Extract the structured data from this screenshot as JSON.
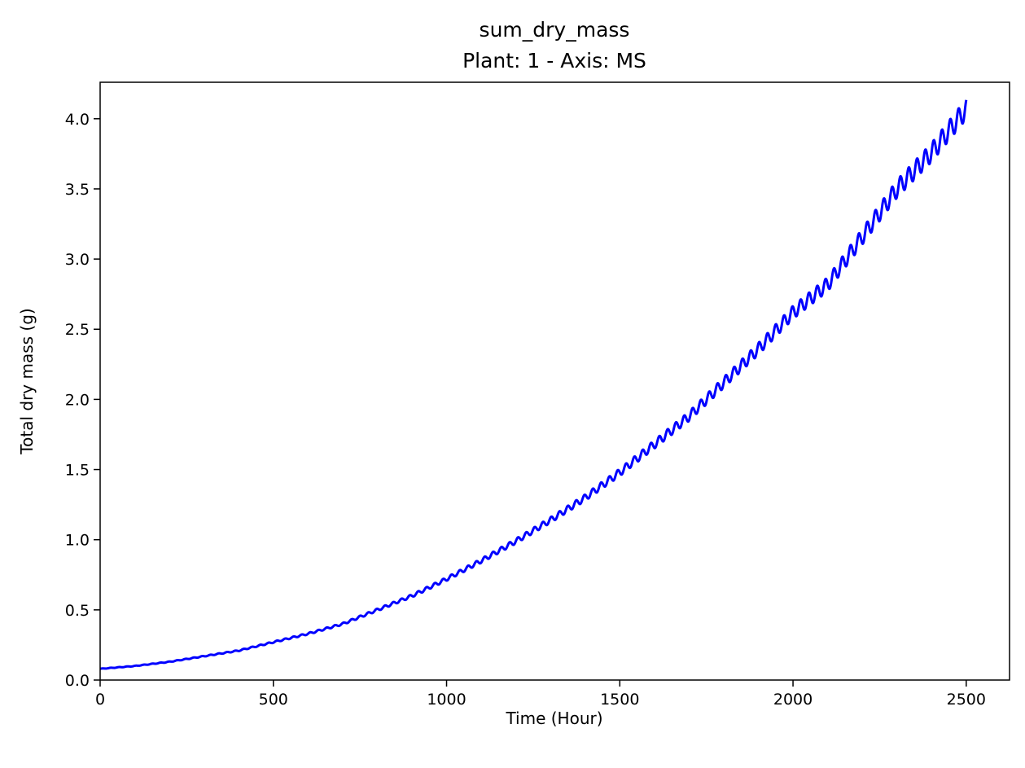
{
  "chart_data": {
    "type": "line",
    "title": "sum_dry_mass",
    "subtitle": "Plant: 1 - Axis: MS",
    "xlabel": "Time (Hour)",
    "ylabel": "Total dry mass (g)",
    "xlim": [
      0,
      2625
    ],
    "ylim": [
      0,
      4.26
    ],
    "xticks": [
      0,
      500,
      1000,
      1500,
      2000,
      2500
    ],
    "xtick_labels": [
      "0",
      "500",
      "1000",
      "1500",
      "2000",
      "2500"
    ],
    "yticks": [
      0,
      0.5,
      1.0,
      1.5,
      2.0,
      2.5,
      3.0,
      3.5,
      4.0
    ],
    "ytick_labels": [
      "0.0",
      "0.5",
      "1.0",
      "1.5",
      "2.0",
      "2.5",
      "3.0",
      "3.5",
      "4.0"
    ],
    "grid": false,
    "series": [
      {
        "color": "#0000ff",
        "x": [
          0,
          100,
          200,
          300,
          400,
          500,
          600,
          700,
          800,
          900,
          1000,
          1100,
          1200,
          1300,
          1400,
          1500,
          1600,
          1700,
          1800,
          1900,
          2000,
          2100,
          2200,
          2300,
          2400,
          2500
        ],
        "y": [
          0.08,
          0.1,
          0.13,
          0.17,
          0.21,
          0.27,
          0.33,
          0.4,
          0.5,
          0.6,
          0.72,
          0.85,
          0.99,
          1.14,
          1.3,
          1.48,
          1.68,
          1.88,
          2.12,
          2.36,
          2.62,
          2.82,
          3.16,
          3.5,
          3.76,
          4.07
        ],
        "oscillation_period": 24,
        "oscillation_relative_amplitude": 0.018
      }
    ]
  }
}
